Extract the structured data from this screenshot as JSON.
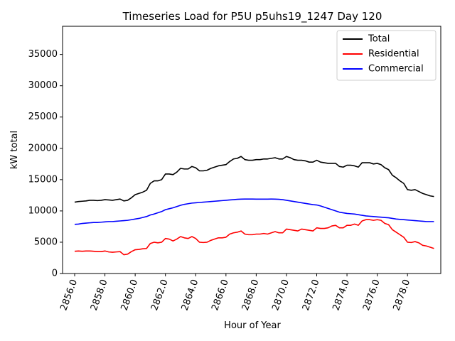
{
  "chart_data": {
    "type": "line",
    "title": "Timeseries Load for P5U p5uhs19_1247  Day 120",
    "xlabel": "Hour of Year",
    "ylabel": "kW total",
    "xlim": [
      2855.2,
      2880.2
    ],
    "ylim": [
      0,
      39500
    ],
    "xticks": [
      2856,
      2858,
      2860,
      2862,
      2864,
      2866,
      2868,
      2870,
      2872,
      2874,
      2876,
      2878
    ],
    "xtick_labels": [
      "2856.0",
      "2858.0",
      "2860.0",
      "2862.0",
      "2864.0",
      "2866.0",
      "2868.0",
      "2870.0",
      "2872.0",
      "2874.0",
      "2876.0",
      "2878.0"
    ],
    "yticks": [
      0,
      5000,
      10000,
      15000,
      20000,
      25000,
      30000,
      35000
    ],
    "ytick_labels": [
      "0",
      "5000",
      "10000",
      "15000",
      "20000",
      "25000",
      "30000",
      "35000"
    ],
    "legend_position": "top-right",
    "x": [
      2856,
      2856.25,
      2856.5,
      2856.75,
      2857,
      2857.25,
      2857.5,
      2857.75,
      2858,
      2858.25,
      2858.5,
      2858.75,
      2859,
      2859.25,
      2859.5,
      2859.75,
      2860,
      2860.25,
      2860.5,
      2860.75,
      2861,
      2861.25,
      2861.5,
      2861.75,
      2862,
      2862.25,
      2862.5,
      2862.75,
      2863,
      2863.25,
      2863.5,
      2863.75,
      2864,
      2864.25,
      2864.5,
      2864.75,
      2865,
      2865.25,
      2865.5,
      2865.75,
      2866,
      2866.25,
      2866.5,
      2866.75,
      2867,
      2867.25,
      2867.5,
      2867.75,
      2868,
      2868.25,
      2868.5,
      2868.75,
      2869,
      2869.25,
      2869.5,
      2869.75,
      2870,
      2870.25,
      2870.5,
      2870.75,
      2871,
      2871.25,
      2871.5,
      2871.75,
      2872,
      2872.25,
      2872.5,
      2872.75,
      2873,
      2873.25,
      2873.5,
      2873.75,
      2874,
      2874.25,
      2874.5,
      2874.75,
      2875,
      2875.25,
      2875.5,
      2875.75,
      2876,
      2876.25,
      2876.5,
      2876.75,
      2877,
      2877.25,
      2877.5,
      2877.75,
      2878,
      2878.25,
      2878.5,
      2878.75,
      2879,
      2879.25,
      2879.5,
      2879.75
    ],
    "series": [
      {
        "name": "Total",
        "color": "#000000",
        "values": [
          11400,
          11500,
          11550,
          11600,
          11700,
          11700,
          11650,
          11700,
          11800,
          11750,
          11700,
          11800,
          11900,
          11600,
          11700,
          12100,
          12600,
          12800,
          13000,
          13300,
          14400,
          14800,
          14800,
          15000,
          15900,
          15900,
          15800,
          16200,
          16800,
          16700,
          16700,
          17100,
          16900,
          16400,
          16400,
          16500,
          16800,
          17000,
          17200,
          17300,
          17400,
          17900,
          18300,
          18400,
          18700,
          18200,
          18100,
          18100,
          18200,
          18200,
          18300,
          18300,
          18400,
          18500,
          18300,
          18300,
          18700,
          18500,
          18200,
          18100,
          18100,
          18000,
          17800,
          17800,
          18100,
          17800,
          17700,
          17600,
          17600,
          17600,
          17100,
          17000,
          17300,
          17300,
          17200,
          17000,
          17700,
          17700,
          17700,
          17500,
          17600,
          17400,
          16900,
          16600,
          15700,
          15300,
          14800,
          14400,
          13400,
          13300,
          13400,
          13100,
          12800,
          12600,
          12400,
          12300
        ]
      },
      {
        "name": "Residential",
        "color": "#ff0000",
        "values": [
          3550,
          3600,
          3550,
          3600,
          3600,
          3550,
          3500,
          3500,
          3600,
          3450,
          3400,
          3450,
          3500,
          3000,
          3100,
          3500,
          3800,
          3850,
          3950,
          4000,
          4800,
          5000,
          4900,
          5000,
          5600,
          5500,
          5200,
          5500,
          5900,
          5700,
          5600,
          5900,
          5600,
          5000,
          4950,
          5000,
          5300,
          5500,
          5700,
          5700,
          5800,
          6300,
          6500,
          6600,
          6800,
          6300,
          6200,
          6200,
          6300,
          6300,
          6400,
          6300,
          6500,
          6700,
          6500,
          6500,
          7100,
          7000,
          6900,
          6800,
          7100,
          7000,
          6900,
          6800,
          7300,
          7200,
          7200,
          7300,
          7600,
          7700,
          7300,
          7300,
          7700,
          7700,
          7900,
          7700,
          8400,
          8600,
          8600,
          8500,
          8600,
          8500,
          8000,
          7800,
          7000,
          6600,
          6200,
          5800,
          5000,
          4950,
          5100,
          4900,
          4500,
          4400,
          4200,
          4000
        ]
      },
      {
        "name": "Commercial",
        "color": "#0000ff",
        "values": [
          7850,
          7900,
          8000,
          8050,
          8100,
          8150,
          8150,
          8200,
          8250,
          8300,
          8300,
          8350,
          8400,
          8450,
          8500,
          8600,
          8700,
          8800,
          8950,
          9100,
          9350,
          9500,
          9700,
          9900,
          10200,
          10350,
          10500,
          10700,
          10900,
          11050,
          11150,
          11250,
          11300,
          11350,
          11400,
          11450,
          11500,
          11550,
          11600,
          11650,
          11700,
          11750,
          11800,
          11850,
          11880,
          11900,
          11900,
          11900,
          11880,
          11880,
          11880,
          11880,
          11900,
          11880,
          11850,
          11800,
          11700,
          11600,
          11500,
          11400,
          11300,
          11200,
          11100,
          11000,
          10950,
          10800,
          10600,
          10400,
          10200,
          10000,
          9800,
          9700,
          9600,
          9550,
          9500,
          9400,
          9300,
          9200,
          9150,
          9100,
          9050,
          9000,
          8950,
          8900,
          8800,
          8700,
          8650,
          8600,
          8550,
          8500,
          8450,
          8400,
          8350,
          8300,
          8300,
          8300
        ]
      }
    ]
  }
}
